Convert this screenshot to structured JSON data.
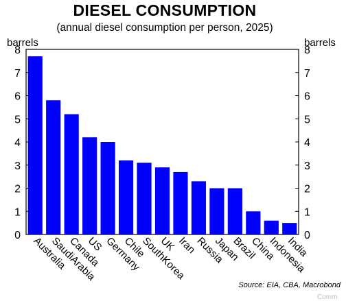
{
  "chart_data": {
    "type": "bar",
    "title": "DIESEL CONSUMPTION",
    "subtitle": "(annual diesel consumption per person, 2025)",
    "ylabel_left": "barrels",
    "ylabel_right": "barrels",
    "xlabel": "",
    "ylim": [
      0,
      8
    ],
    "yticks": [
      0,
      1,
      2,
      3,
      4,
      5,
      6,
      7,
      8
    ],
    "grid": false,
    "bar_color": "#0000ff",
    "categories": [
      "Australia",
      "SaudiArabia",
      "Canada",
      "US",
      "Germany",
      "Chile",
      "SouthKorea",
      "UK",
      "Iran",
      "Russia",
      "Japan",
      "Brazil",
      "China",
      "Indonesia",
      "India"
    ],
    "values": [
      7.7,
      5.8,
      5.2,
      4.2,
      4.0,
      3.2,
      3.1,
      2.9,
      2.7,
      2.3,
      2.0,
      2.0,
      1.0,
      0.6,
      0.5
    ],
    "source": "Source: EIA, CBA, Macrobond",
    "footer": "Comm"
  }
}
